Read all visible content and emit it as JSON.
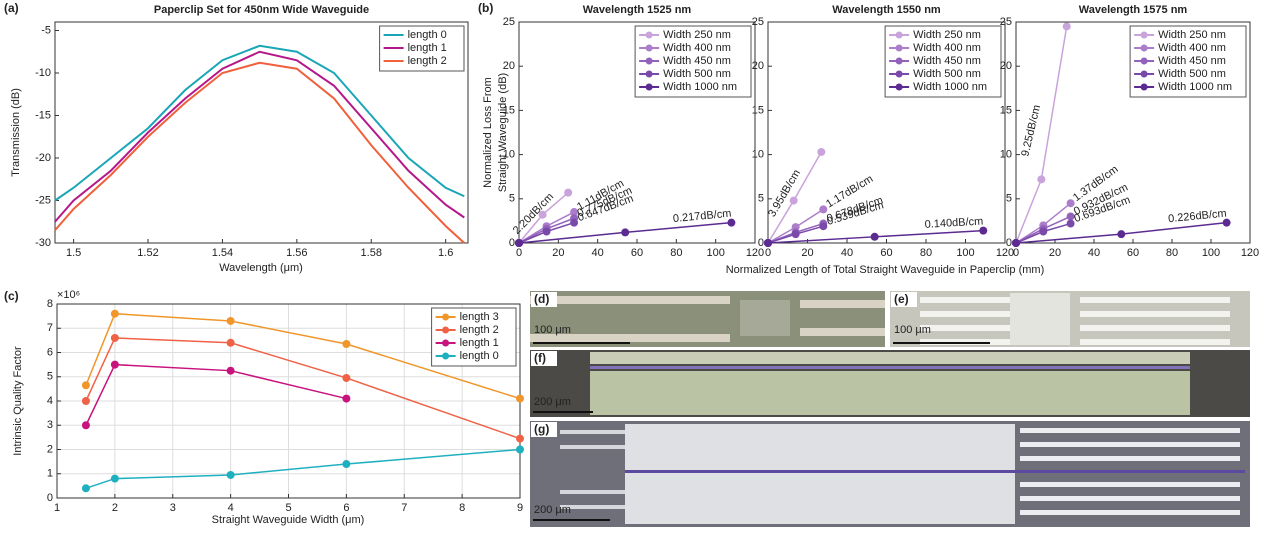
{
  "chart_data": [
    {
      "type": "line",
      "title": "Paperclip Set for 450nm Wide Waveguide",
      "xlabel": "Wavelength (μm)",
      "ylabel": "Transmission (dB)",
      "x": [
        1.495,
        1.5,
        1.51,
        1.52,
        1.53,
        1.54,
        1.55,
        1.56,
        1.57,
        1.58,
        1.59,
        1.6,
        1.605
      ],
      "series": [
        {
          "name": "length 0",
          "color": "#1aa6b7",
          "values": [
            -25,
            -23.5,
            -20,
            -16.5,
            -12,
            -8.5,
            -6.8,
            -7.5,
            -10,
            -15,
            -20,
            -23.5,
            -24.5
          ]
        },
        {
          "name": "length 1",
          "color": "#b5178a",
          "values": [
            -27.5,
            -25,
            -21.5,
            -17,
            -13,
            -9.5,
            -7.5,
            -8.5,
            -11.5,
            -16.5,
            -21.5,
            -25.5,
            -27
          ]
        },
        {
          "name": "length 2",
          "color": "#f0603c",
          "values": [
            -28.5,
            -26,
            -22,
            -17.5,
            -13.5,
            -10,
            -8.8,
            -9.5,
            -13,
            -18.5,
            -23.5,
            -28,
            -30
          ]
        }
      ],
      "xlim": [
        1.495,
        1.606
      ],
      "xticks": [
        1.5,
        1.52,
        1.54,
        1.56,
        1.58,
        1.6
      ],
      "ylim": [
        -30,
        -4
      ],
      "yticks": [
        -30,
        -25,
        -20,
        -15,
        -10,
        -5
      ],
      "legend": "upper right",
      "grid": false,
      "markers": false
    },
    {
      "type": "line",
      "title": "Wavelength 1525 nm",
      "ylabel": [
        "Normalized Loss From",
        "Straight Waveguide (dB)"
      ],
      "series": [
        {
          "name": "Width 250 nm",
          "color": "#c9a3db",
          "x": [
            0,
            12,
            25
          ],
          "values": [
            0,
            3.2,
            5.7
          ]
        },
        {
          "name": "Width 400 nm",
          "color": "#ab7dcb",
          "x": [
            0,
            14,
            28
          ],
          "values": [
            0,
            1.9,
            3.5
          ]
        },
        {
          "name": "Width 450 nm",
          "color": "#9363bb",
          "x": [
            0,
            14,
            28
          ],
          "values": [
            0,
            1.6,
            2.8
          ]
        },
        {
          "name": "Width 500 nm",
          "color": "#7a4aaa",
          "x": [
            0,
            14,
            28
          ],
          "values": [
            0,
            1.3,
            2.3
          ]
        },
        {
          "name": "Width 1000 nm",
          "color": "#5b2b92",
          "x": [
            0,
            54,
            108
          ],
          "values": [
            0,
            1.2,
            2.3
          ]
        }
      ],
      "annotations": [
        "2.20dB/cm",
        "1.11dB/cm",
        "0.775dB/cm",
        "0.647dB/cm",
        "0.217dB/cm"
      ],
      "xlim": [
        0,
        120
      ],
      "xticks": [
        0,
        20,
        40,
        60,
        80,
        100,
        120
      ],
      "ylim": [
        0,
        25
      ],
      "yticks": [
        0,
        5,
        10,
        15,
        20,
        25
      ],
      "legend": "upper right",
      "grid": false,
      "markers": true
    },
    {
      "type": "line",
      "title": "Wavelength 1550 nm",
      "xlabel": "Normalized Length of Total Straight Waveguide in Paperclip (mm)",
      "series": [
        {
          "name": "Width 250 nm",
          "color": "#c9a3db",
          "x": [
            0,
            13,
            27
          ],
          "values": [
            0,
            4.8,
            10.3
          ]
        },
        {
          "name": "Width 400 nm",
          "color": "#ab7dcb",
          "x": [
            0,
            14,
            28
          ],
          "values": [
            0,
            1.8,
            3.8
          ]
        },
        {
          "name": "Width 450 nm",
          "color": "#9363bb",
          "x": [
            0,
            14,
            28
          ],
          "values": [
            0,
            1.2,
            2.2
          ]
        },
        {
          "name": "Width 500 nm",
          "color": "#7a4aaa",
          "x": [
            0,
            14,
            28
          ],
          "values": [
            0,
            1.0,
            1.9
          ]
        },
        {
          "name": "Width 1000 nm",
          "color": "#5b2b92",
          "x": [
            0,
            54,
            109
          ],
          "values": [
            0,
            0.7,
            1.4
          ]
        }
      ],
      "annotations": [
        "3.95dB/cm",
        "1.17dB/cm",
        "0.678dB/cm",
        "0.539dB/cm",
        "0.140dB/cm"
      ],
      "xlim": [
        0,
        120
      ],
      "xticks": [
        0,
        20,
        40,
        60,
        80,
        100,
        120
      ],
      "ylim": [
        0,
        25
      ],
      "yticks": [
        0,
        5,
        10,
        15,
        20,
        25
      ],
      "legend": "upper right",
      "grid": false,
      "markers": true
    },
    {
      "type": "line",
      "title": "Wavelength 1575 nm",
      "series": [
        {
          "name": "Width 250 nm",
          "color": "#c9a3db",
          "x": [
            0,
            13,
            26
          ],
          "values": [
            0,
            7.2,
            24.5
          ]
        },
        {
          "name": "Width 400 nm",
          "color": "#ab7dcb",
          "x": [
            0,
            14,
            28
          ],
          "values": [
            0,
            2.0,
            4.5
          ]
        },
        {
          "name": "Width 450 nm",
          "color": "#9363bb",
          "x": [
            0,
            14,
            28
          ],
          "values": [
            0,
            1.6,
            3.0
          ]
        },
        {
          "name": "Width 500 nm",
          "color": "#7a4aaa",
          "x": [
            0,
            14,
            28
          ],
          "values": [
            0,
            1.3,
            2.2
          ]
        },
        {
          "name": "Width 1000 nm",
          "color": "#5b2b92",
          "x": [
            0,
            54,
            108
          ],
          "values": [
            0,
            1.0,
            2.3
          ]
        }
      ],
      "annotations": [
        "9.25dB/cm",
        "1.37dB/cm",
        "0.932dB/cm",
        "0.693dB/cm",
        "0.226dB/cm"
      ],
      "xlim": [
        0,
        120
      ],
      "xticks": [
        0,
        20,
        40,
        60,
        80,
        100,
        120
      ],
      "ylim": [
        0,
        25
      ],
      "yticks": [
        0,
        5,
        10,
        15,
        20,
        25
      ],
      "legend": "upper right",
      "grid": false,
      "markers": true
    },
    {
      "type": "line",
      "xlabel": "Straight Waveguide Width (μm)",
      "ylabel": "Intrinsic Quality Factor",
      "y_exponent": "×10⁶",
      "x": [
        1.5,
        2,
        4,
        6,
        9
      ],
      "series": [
        {
          "name": "length 3",
          "color": "#f0962a",
          "values": [
            4650000,
            7600000,
            7300000,
            6350000,
            4100000
          ]
        },
        {
          "name": "length 2",
          "color": "#f06245",
          "values": [
            4000000,
            6600000,
            6400000,
            4950000,
            2450000
          ]
        },
        {
          "name": "length 1",
          "color": "#c8127e",
          "values": [
            3000000,
            5500000,
            5250000,
            4100000,
            null
          ]
        },
        {
          "name": "length 0",
          "color": "#1fb0c0",
          "values": [
            400000,
            800000,
            950000,
            1400000,
            2000000
          ]
        }
      ],
      "xlim": [
        1,
        9
      ],
      "xticks": [
        1,
        2,
        3,
        4,
        5,
        6,
        7,
        8,
        9
      ],
      "ylim": [
        0,
        8000000
      ],
      "yticks": [
        0,
        {
          "value": 1000000,
          "label": "1"
        },
        {
          "value": 2000000,
          "label": "2"
        },
        {
          "value": 3000000,
          "label": "3"
        },
        {
          "value": 4000000,
          "label": "4"
        },
        {
          "value": 5000000,
          "label": "5"
        },
        {
          "value": 6000000,
          "label": "6"
        },
        {
          "value": 7000000,
          "label": "7"
        },
        {
          "value": 8000000,
          "label": "8"
        }
      ],
      "legend": "upper right",
      "grid": true,
      "markers": true
    }
  ],
  "figure": {
    "panel_labels": [
      "(a)",
      "(b)",
      "(c)"
    ],
    "images": [
      {
        "label": "(d)",
        "scale": "100 μm"
      },
      {
        "label": "(e)",
        "scale": "100 μm"
      },
      {
        "label": "(f)",
        "scale": "200 μm"
      },
      {
        "label": "(g)",
        "scale": "200 μm"
      }
    ]
  }
}
